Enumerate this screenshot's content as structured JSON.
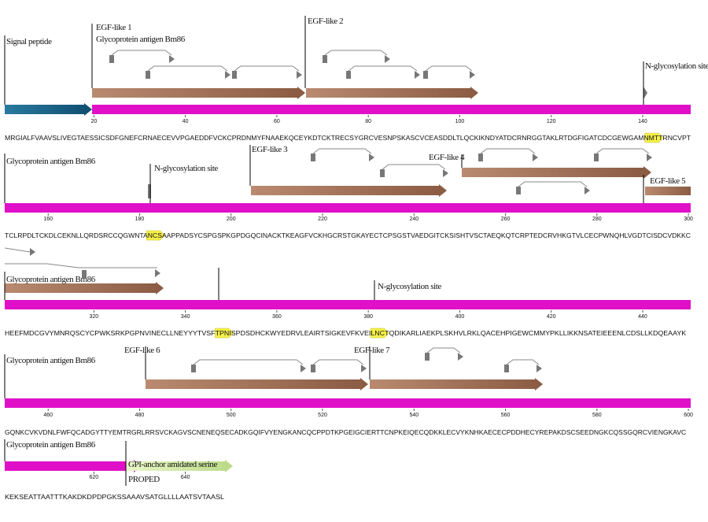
{
  "rows": [
    {
      "sequence": "MRGIALFVAAVSLIVEGTAESSICSDFGNEFCRNAECEVVPGAEDDFVCKCPRDNMYFNAAEKQCEYKDTCKTRECSYGRCVESNPSKASCVCEASDDLTLQCKIKNDYATDCRNRGGTAKLRTDGFIGATCDCGEWGAMNMTTRNCVPT",
      "ruler": [
        20,
        40,
        60,
        80,
        100,
        120,
        140
      ],
      "motifs": [
        "NMT"
      ],
      "features": [
        "Signal peptide",
        "EGF-like 1",
        "Glycoprotein antigen Bm86",
        "EGF-like 2",
        "N-glycosylation site"
      ]
    },
    {
      "sequence": "TCLRPDLTCKDLCEKNLLQRDSRCCQGWNTANCSAAPPADSYCSPGSPKGPDGQCINACKTKEAGFVCKHGCRSTGKAYECTCPSGSTVAEDGITCKSISHTVSCTAEQKQTCRPTEDCRVHKGTVLCECPWNQHLVGDTCISDCVDKKC",
      "ruler": [
        160,
        180,
        200,
        220,
        240,
        260,
        280,
        300
      ],
      "motifs": [
        "NCS"
      ],
      "features": [
        "Glycoprotein antigen Bm86",
        "N-glycosylation site",
        "EGF-like 3",
        "EGF-like 4",
        "EGF-like 5"
      ]
    },
    {
      "sequence": "HEEFMDCGVYMNRQSCYCPWKSRKPGPNVINECLLNEYYYTVSFTPNISPDSDHCKWYEDRVLEAIRTSIGKEVFKVEILNCTQDIKARLIAEKPLSKHVLRKLQACEHPIGEWCMMYPKLLIKKNSATEIEEENLCDSLLKDQEAAYK",
      "ruler": [
        320,
        340,
        360,
        380,
        400,
        420,
        440
      ],
      "motifs": [
        "NIS",
        "NCT"
      ],
      "features": [
        "Glycoprotein antigen Bm86",
        "N-glycosylation site"
      ]
    },
    {
      "sequence": "GQNKCVKVDNLFWFQCADGYTTYEMTRGRLRRSVCKAGVSCNENEQSECADKGQIFVYENGKANCQCPPDTKPGEIGCIERTTCNPKEIQECQDKKLECVYKNHKAECECPDDHECYREPAKDSCSEEDNGKCQSSGQRCVIENGKAVC",
      "ruler": [
        460,
        480,
        500,
        520,
        540,
        560,
        580,
        600
      ],
      "motifs": [],
      "features": [
        "Glycoprotein antigen Bm86",
        "EGF-like 6",
        "EGF-like 7"
      ]
    },
    {
      "sequence": "KEKSEATTAATTTKAKDKDPDPGKSSAAAVSATGLLLLAATSVTAASL",
      "ruler": [
        620,
        640
      ],
      "motifs": [],
      "features": [
        "Glycoprotein antigen Bm86",
        "GPI-anchor amidated serine",
        "PROPED"
      ]
    }
  ]
}
